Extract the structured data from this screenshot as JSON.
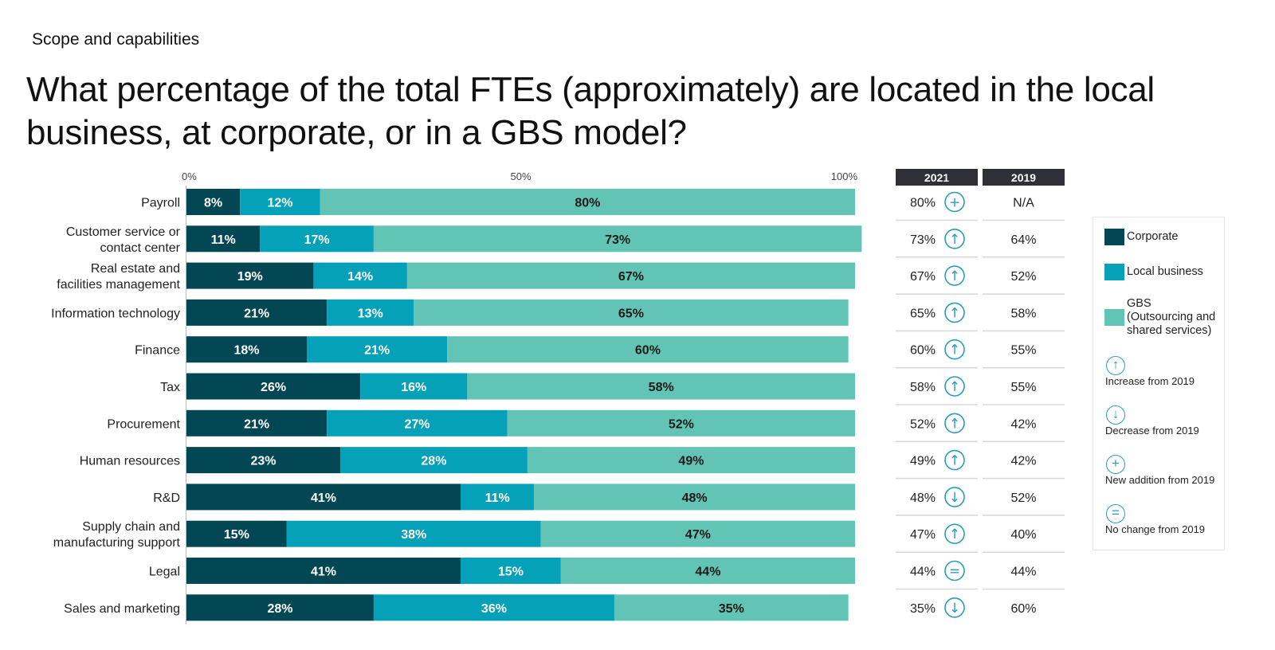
{
  "header": {
    "eyebrow": "Scope and capabilities",
    "title": "What percentage of the total FTEs (approximately) are located in the local business, at corporate, or in a GBS model?"
  },
  "colors": {
    "corporate": "#034754",
    "local_business": "#05a1b8",
    "gbs": "#62c4b4",
    "trend_icon": "#2a9bc0"
  },
  "chart_data": {
    "type": "bar",
    "orientation": "horizontal",
    "stacked": true,
    "x_ticks": [
      "0%",
      "50%",
      "100%"
    ],
    "xlim": [
      0,
      100
    ],
    "categories": [
      [
        "Payroll"
      ],
      [
        "Customer service or",
        "contact center"
      ],
      [
        "Real estate and",
        "facilities management"
      ],
      [
        "Information technology"
      ],
      [
        "Finance"
      ],
      [
        "Tax"
      ],
      [
        "Procurement"
      ],
      [
        "Human resources"
      ],
      [
        "R&D"
      ],
      [
        "Supply chain and",
        "manufacturing support"
      ],
      [
        "Legal"
      ],
      [
        "Sales and marketing"
      ]
    ],
    "series": [
      {
        "name": "Corporate",
        "values": [
          8,
          11,
          19,
          21,
          18,
          26,
          21,
          23,
          41,
          15,
          41,
          28
        ]
      },
      {
        "name": "Local business",
        "values": [
          12,
          17,
          14,
          13,
          21,
          16,
          27,
          28,
          11,
          38,
          15,
          36
        ]
      },
      {
        "name": "GBS\n(Outsourcing and\nshared services)",
        "values": [
          80,
          73,
          67,
          65,
          60,
          58,
          52,
          49,
          48,
          47,
          44,
          35
        ]
      }
    ],
    "comparison_table": {
      "headers": [
        "2021",
        "2019"
      ],
      "rows": [
        {
          "y2021": "80%",
          "trend": "new",
          "y2019": "N/A"
        },
        {
          "y2021": "73%",
          "trend": "up",
          "y2019": "64%"
        },
        {
          "y2021": "67%",
          "trend": "up",
          "y2019": "52%"
        },
        {
          "y2021": "65%",
          "trend": "up",
          "y2019": "58%"
        },
        {
          "y2021": "60%",
          "trend": "up",
          "y2019": "55%"
        },
        {
          "y2021": "58%",
          "trend": "up",
          "y2019": "55%"
        },
        {
          "y2021": "52%",
          "trend": "up",
          "y2019": "42%"
        },
        {
          "y2021": "49%",
          "trend": "up",
          "y2019": "42%"
        },
        {
          "y2021": "48%",
          "trend": "down",
          "y2019": "52%"
        },
        {
          "y2021": "47%",
          "trend": "up",
          "y2019": "40%"
        },
        {
          "y2021": "44%",
          "trend": "same",
          "y2019": "44%"
        },
        {
          "y2021": "35%",
          "trend": "down",
          "y2019": "60%"
        }
      ]
    },
    "legend": {
      "position": "right",
      "trend_keys": [
        {
          "icon": "arrow-up-icon",
          "label": "Increase from 2019"
        },
        {
          "icon": "arrow-down-icon",
          "label": "Decrease from 2019"
        },
        {
          "icon": "plus-icon",
          "label": "New addition from 2019"
        },
        {
          "icon": "equals-icon",
          "label": "No change from 2019"
        }
      ]
    }
  }
}
